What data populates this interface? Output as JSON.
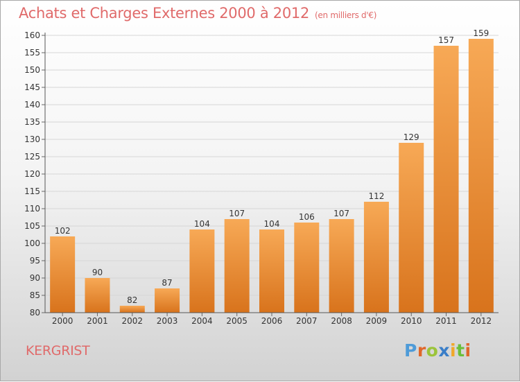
{
  "title": "Achats et Charges Externes 2000 à 2012",
  "unit": "(en milliers d'€)",
  "place": "KERGRIST",
  "logo": "Proxiti",
  "colors": {
    "title": "#e06a6a",
    "bar_light": "#f7a956",
    "bar_dark": "#d8731c",
    "logo_letters": [
      "#4e9bd8",
      "#e0672a",
      "#9bc43a",
      "#3a7ec8",
      "#f0a82a",
      "#6bbf3a",
      "#e0672a"
    ]
  },
  "chart_data": {
    "type": "bar",
    "categories": [
      "2000",
      "2001",
      "2002",
      "2003",
      "2004",
      "2005",
      "2006",
      "2007",
      "2008",
      "2009",
      "2010",
      "2011",
      "2012"
    ],
    "values": [
      102,
      90,
      82,
      87,
      104,
      107,
      104,
      106,
      107,
      112,
      129,
      157,
      159
    ],
    "ylim": [
      80,
      160
    ],
    "yticks": [
      80,
      85,
      90,
      95,
      100,
      105,
      110,
      115,
      120,
      125,
      130,
      135,
      140,
      145,
      150,
      155,
      160
    ],
    "grid": true,
    "xlabel": "",
    "ylabel": ""
  }
}
